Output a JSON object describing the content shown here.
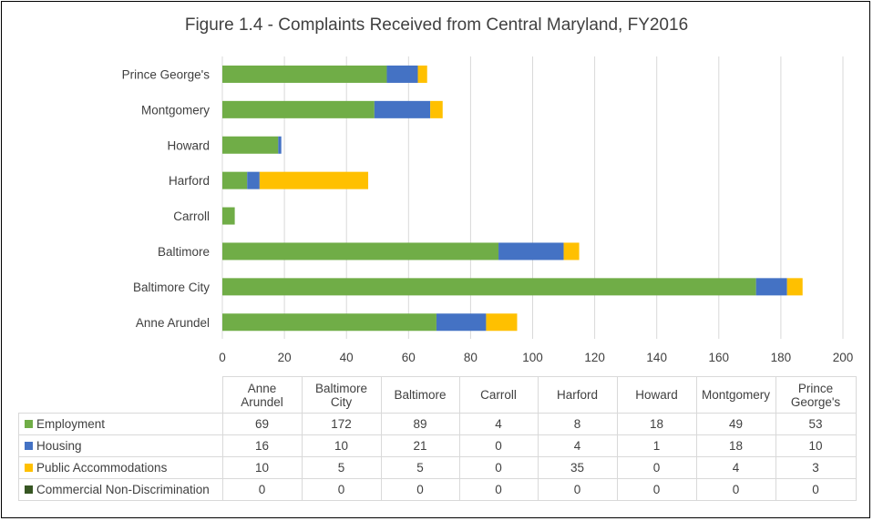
{
  "chart_data": {
    "type": "bar",
    "orientation": "horizontal",
    "stacked": true,
    "title": "Figure 1.4 - Complaints Received from Central Maryland, FY2016",
    "categories": [
      "Anne Arundel",
      "Baltimore City",
      "Baltimore",
      "Carroll",
      "Harford",
      "Howard",
      "Montgomery",
      "Prince George's"
    ],
    "table_headers": [
      "Anne\nArundel",
      "Baltimore\nCity",
      "Baltimore",
      "Carroll",
      "Harford",
      "Howard",
      "Montgomery",
      "Prince\nGeorge's"
    ],
    "series": [
      {
        "name": "Employment",
        "color": "#70ad47",
        "values": [
          69,
          172,
          89,
          4,
          8,
          18,
          49,
          53
        ]
      },
      {
        "name": "Housing",
        "color": "#4472c4",
        "values": [
          16,
          10,
          21,
          0,
          4,
          1,
          18,
          10
        ]
      },
      {
        "name": "Public Accommodations",
        "color": "#ffc000",
        "values": [
          10,
          5,
          5,
          0,
          35,
          0,
          4,
          3
        ]
      },
      {
        "name": "Commercial Non-Discrimination",
        "color": "#375623",
        "values": [
          0,
          0,
          0,
          0,
          0,
          0,
          0,
          0
        ]
      }
    ],
    "xlim": [
      0,
      200
    ],
    "xticks": [
      0,
      20,
      40,
      60,
      80,
      100,
      120,
      140,
      160,
      180,
      200
    ],
    "grid": true,
    "legend": "data-table"
  }
}
